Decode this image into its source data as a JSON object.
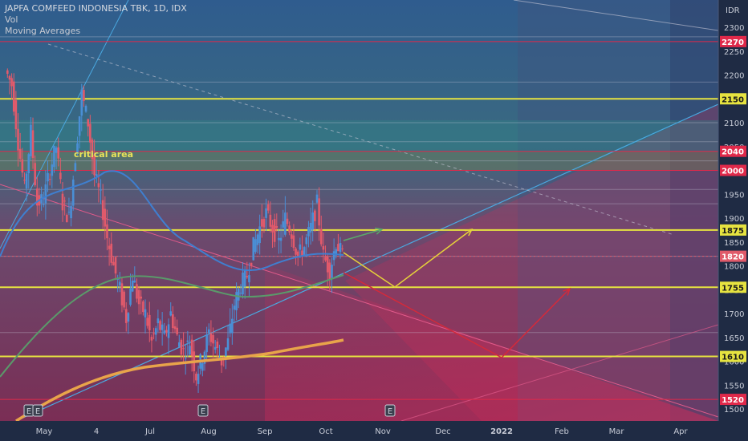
{
  "legend": {
    "title": "JAPFA COMFEED INDONESIA TBK, 1D, IDX",
    "vol": "Vol",
    "ma": "Moving Averages"
  },
  "currency": "IDR",
  "annotation": "critical area",
  "colors": {
    "yellow_level": "#e6e340",
    "red_level": "#e0294a",
    "ma_orange": "#e8a44a",
    "ma_green": "#5a9a6a",
    "ma_blue": "#3f7fd0",
    "up_candle": "#4a8fd6",
    "down_candle": "#e25a6b",
    "projection_yellow": "#e6d23a",
    "projection_red": "#d42a3a",
    "projection_green": "#5aaa6a",
    "trendline": "#4aa8e0"
  },
  "chart_data": {
    "type": "candlestick",
    "y_range": [
      1480,
      2350
    ],
    "y_ticks": [
      1500,
      1550,
      1600,
      1650,
      1700,
      1750,
      1800,
      1850,
      1900,
      1950,
      2000,
      2050,
      2100,
      2150,
      2200,
      2250,
      2300
    ],
    "x_ticks": [
      "May",
      "4",
      "Jul",
      "Aug",
      "Sep",
      "Oct",
      "Nov",
      "Dec",
      "2022",
      "Feb",
      "Mar",
      "Apr"
    ],
    "price_levels": [
      {
        "value": 2270,
        "label": "2270",
        "color": "red"
      },
      {
        "value": 2150,
        "label": "2150",
        "color": "yellow"
      },
      {
        "value": 2040,
        "label": "2040",
        "color": "red"
      },
      {
        "value": 2000,
        "label": "2000",
        "color": "red"
      },
      {
        "value": 1875,
        "label": "1875",
        "color": "yellow"
      },
      {
        "value": 1820,
        "label": "1820",
        "color": "current"
      },
      {
        "value": 1755,
        "label": "1755",
        "color": "yellow"
      },
      {
        "value": 1610,
        "label": "1610",
        "color": "yellow"
      },
      {
        "value": 1520,
        "label": "1520",
        "color": "red"
      }
    ],
    "close_path": [
      2210,
      2180,
      2060,
      1960,
      2080,
      1930,
      1940,
      2000,
      2050,
      1930,
      1900,
      2030,
      2160,
      2100,
      1990,
      1940,
      1860,
      1800,
      1750,
      1690,
      1780,
      1720,
      1700,
      1640,
      1680,
      1650,
      1700,
      1650,
      1620,
      1640,
      1570,
      1610,
      1660,
      1630,
      1600,
      1640,
      1720,
      1760,
      1780,
      1840,
      1880,
      1910,
      1880,
      1850,
      1900,
      1870,
      1820,
      1840,
      1880,
      1930,
      1820,
      1790,
      1850,
      1820
    ],
    "events_marker": "E"
  }
}
